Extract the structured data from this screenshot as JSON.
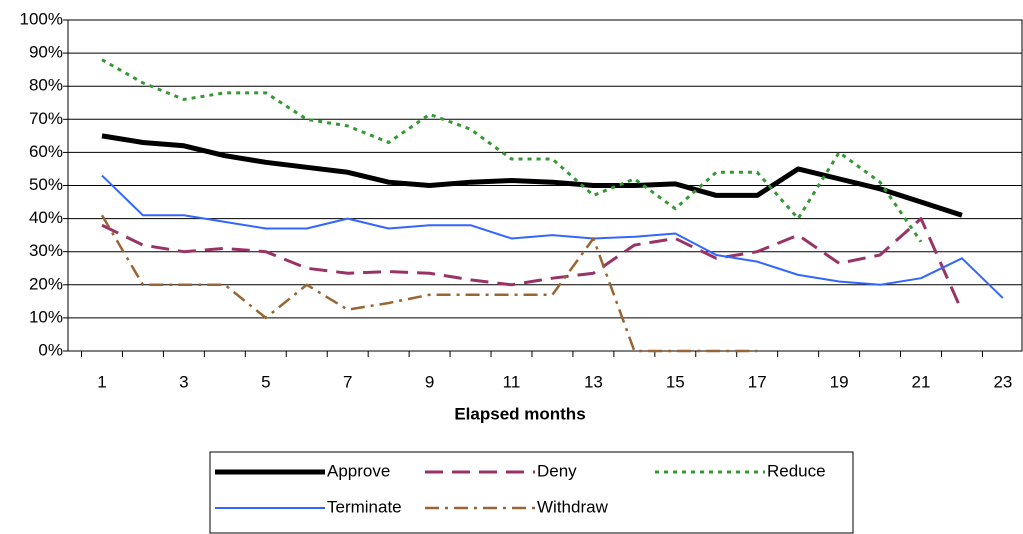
{
  "chart_data": {
    "type": "line",
    "x_label": "Elapsed months",
    "categories": [
      "1",
      null,
      "3",
      null,
      "5",
      null,
      "7",
      null,
      "9",
      null,
      "11",
      null,
      "13",
      null,
      "15",
      null,
      "17",
      null,
      "19",
      null,
      "21",
      null,
      "23"
    ],
    "ylim": [
      0,
      100
    ],
    "yticks": [
      {
        "value": 0,
        "label": "0%"
      },
      {
        "value": 10,
        "label": "10%"
      },
      {
        "value": 20,
        "label": "20%"
      },
      {
        "value": 30,
        "label": "30%"
      },
      {
        "value": 40,
        "label": "40%"
      },
      {
        "value": 50,
        "label": "50%"
      },
      {
        "value": 60,
        "label": "60%"
      },
      {
        "value": 70,
        "label": "70%"
      },
      {
        "value": 80,
        "label": "80%"
      },
      {
        "value": 90,
        "label": "90%"
      },
      {
        "value": 100,
        "label": "100%"
      }
    ],
    "grid": true,
    "legend": "bottom",
    "series": [
      {
        "name": "Approve",
        "color": "#000000",
        "width": 5,
        "dash": "none",
        "values": [
          65,
          63,
          62,
          59,
          57,
          55.5,
          54,
          51,
          50,
          51,
          51.5,
          51,
          50,
          50,
          50.5,
          47,
          47,
          55,
          52,
          49,
          45,
          41,
          null
        ]
      },
      {
        "name": "Deny",
        "color": "#993366",
        "width": 3,
        "dash": "18 9",
        "values": [
          38,
          32,
          30,
          31,
          30,
          25,
          23.5,
          24,
          23.5,
          21.5,
          20,
          22,
          23.5,
          32,
          34,
          28,
          30,
          35,
          26.5,
          29,
          40,
          12,
          null
        ]
      },
      {
        "name": "Reduce",
        "color": "#339933",
        "width": 3,
        "dash": "4 5",
        "values": [
          88,
          81,
          76,
          78,
          78,
          70,
          68,
          63,
          71.5,
          67,
          58,
          58,
          47,
          52,
          43,
          54,
          54,
          40,
          60,
          51,
          33,
          null,
          null
        ]
      },
      {
        "name": "Terminate",
        "color": "#3366ff",
        "width": 2,
        "dash": "none",
        "values": [
          53,
          41,
          41,
          39,
          37,
          37,
          40,
          37,
          38,
          38,
          34,
          35,
          34,
          34.5,
          35.5,
          29,
          27,
          23,
          21,
          20,
          22,
          28,
          16
        ]
      },
      {
        "name": "Withdraw",
        "color": "#996633",
        "width": 2.5,
        "dash": "14 6 3 6",
        "values": [
          41,
          20,
          20,
          20,
          10,
          20,
          12.5,
          14.5,
          17,
          17,
          17,
          17,
          34,
          0,
          0,
          0,
          0,
          null,
          null,
          null,
          null,
          null,
          null
        ]
      }
    ]
  }
}
